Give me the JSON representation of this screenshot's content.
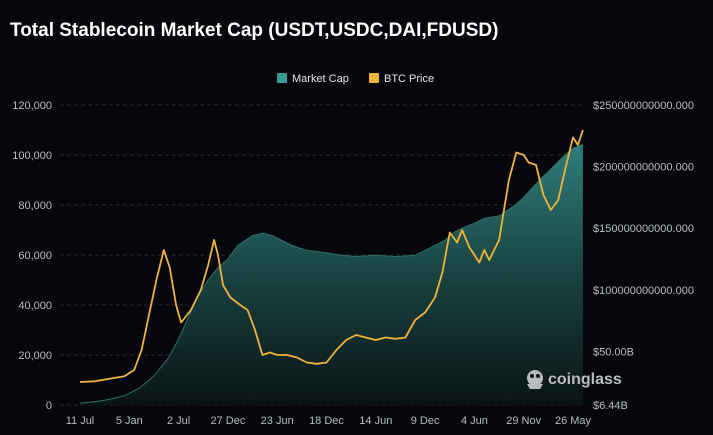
{
  "chart_data": {
    "type": "area",
    "title": "Total Stablecoin Market Cap (USDT,USDC,DAI,FDUSD)",
    "categories": [
      "11 Jul",
      "5 Jan",
      "2 Jul",
      "27 Dec",
      "23 Jun",
      "18 Dec",
      "14 Jun",
      "9 Dec",
      "4 Jun",
      "29 Nov",
      "26 May"
    ],
    "left_axis": {
      "ticks": [
        "0",
        "20,000",
        "40,000",
        "60,000",
        "80,000",
        "100,000",
        "120,000"
      ],
      "ylim": [
        0,
        120000
      ]
    },
    "right_axis": {
      "ticks": [
        "$6.44B",
        "$50.00B",
        "$100000000000.000",
        "$150000000000.000",
        "$200000000000.000",
        "$250000000000.000"
      ],
      "ylim": [
        6440000000,
        250000000000
      ]
    },
    "legend_position": "top-center",
    "grid": true,
    "series": [
      {
        "name": "Market Cap",
        "axis": "right",
        "color": "#3a9a95",
        "x": [
          0,
          0.3,
          0.6,
          0.9,
          1.2,
          1.5,
          1.8,
          2.0,
          2.2,
          2.4,
          2.6,
          2.8,
          3.0,
          3.2,
          3.5,
          3.7,
          3.9,
          4.1,
          4.3,
          4.6,
          5.0,
          5.3,
          5.6,
          6.0,
          6.4,
          6.8,
          7.1,
          7.4,
          7.6,
          7.8,
          8.0,
          8.2,
          8.5,
          8.8,
          9.0,
          9.2,
          9.4,
          9.6,
          9.8,
          10.0,
          10.2
        ],
        "values": [
          8000000000,
          9000000000,
          11000000000,
          14000000000,
          20000000000,
          30000000000,
          45000000000,
          60000000000,
          78000000000,
          95000000000,
          108000000000,
          118000000000,
          125000000000,
          136000000000,
          144000000000,
          146000000000,
          144000000000,
          140000000000,
          136000000000,
          132000000000,
          130000000000,
          128000000000,
          127000000000,
          128000000000,
          127000000000,
          128000000000,
          134000000000,
          140000000000,
          147000000000,
          151000000000,
          154000000000,
          158000000000,
          160000000000,
          168000000000,
          175000000000,
          184000000000,
          192000000000,
          200000000000,
          208000000000,
          215000000000,
          218000000000
        ]
      },
      {
        "name": "BTC Price",
        "axis": "left",
        "color": "#f0b43c",
        "x": [
          0,
          0.3,
          0.6,
          0.9,
          1.1,
          1.25,
          1.4,
          1.55,
          1.7,
          1.82,
          1.95,
          2.05,
          2.25,
          2.45,
          2.6,
          2.72,
          2.8,
          2.9,
          3.05,
          3.25,
          3.4,
          3.55,
          3.7,
          3.85,
          4.0,
          4.2,
          4.4,
          4.6,
          4.8,
          5.0,
          5.2,
          5.4,
          5.6,
          5.8,
          6.0,
          6.2,
          6.4,
          6.6,
          6.8,
          7.0,
          7.2,
          7.35,
          7.5,
          7.65,
          7.75,
          7.9,
          8.0,
          8.1,
          8.2,
          8.3,
          8.5,
          8.7,
          8.85,
          9.0,
          9.1,
          9.25,
          9.4,
          9.55,
          9.7,
          9.85,
          10.0,
          10.1,
          10.2
        ],
        "values": [
          9200,
          9500,
          10500,
          11500,
          14000,
          22000,
          36000,
          50000,
          62000,
          55000,
          40000,
          33000,
          38000,
          46000,
          56000,
          66000,
          60000,
          48000,
          43000,
          40000,
          38000,
          30000,
          20000,
          21000,
          20000,
          20000,
          19000,
          17000,
          16500,
          17000,
          22000,
          26000,
          28000,
          27000,
          26000,
          27000,
          26500,
          27000,
          34000,
          37000,
          43000,
          53000,
          69000,
          65000,
          70000,
          63000,
          60000,
          57000,
          62000,
          58000,
          66000,
          90000,
          101000,
          100000,
          97000,
          96000,
          84000,
          78000,
          82000,
          95000,
          107000,
          104000,
          110000
        ]
      }
    ]
  },
  "brand": {
    "name": "coinglass",
    "icon": "coinglass-logo-icon"
  }
}
